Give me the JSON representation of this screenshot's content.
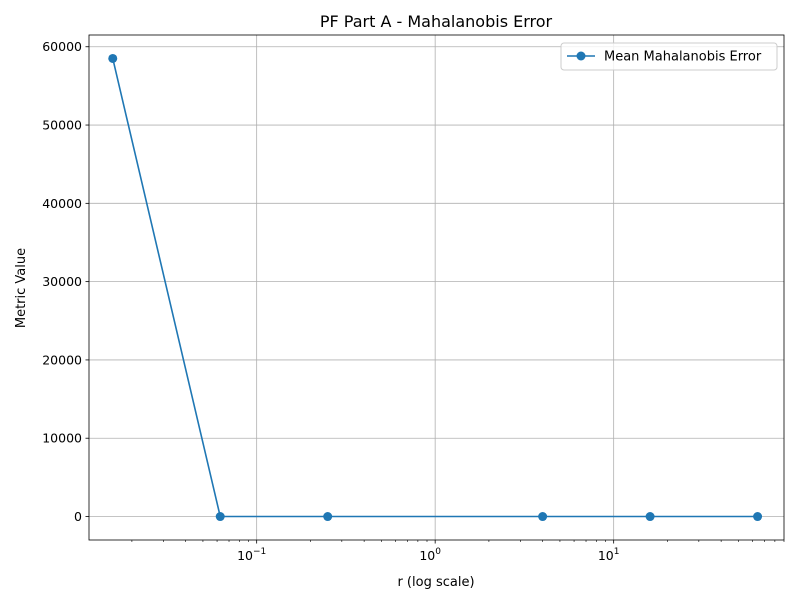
{
  "chart_data": {
    "type": "line",
    "title": "PF Part A - Mahalanobis Error",
    "xlabel": "r (log scale)",
    "ylabel": "Metric Value",
    "x_scale": "log",
    "xlim": [
      0.0115,
      90
    ],
    "ylim": [
      -3000,
      61500
    ],
    "x_ticks": [
      {
        "value": 0.1,
        "base": "10",
        "exp": "−1"
      },
      {
        "value": 1,
        "base": "10",
        "exp": "0"
      },
      {
        "value": 10,
        "base": "10",
        "exp": "1"
      }
    ],
    "y_ticks": [
      0,
      10000,
      20000,
      30000,
      40000,
      50000,
      60000
    ],
    "grid": true,
    "legend_position": "top-right",
    "series": [
      {
        "name": "Mean Mahalanobis Error",
        "color": "#1f77b4",
        "x": [
          0.015625,
          0.0625,
          0.25,
          4,
          16,
          64
        ],
        "y": [
          58500,
          0,
          0,
          0,
          0,
          0
        ]
      }
    ]
  }
}
